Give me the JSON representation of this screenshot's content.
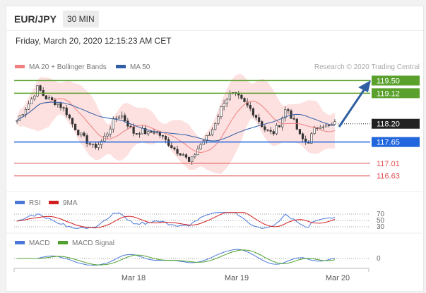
{
  "header": {
    "pair": "EUR/JPY",
    "timeframe": "30 MIN",
    "datetime": "Friday, March 20, 2020 12:15:23 AM CET"
  },
  "legend": {
    "ma20": "MA 20 + Bollinger Bands",
    "ma50": "MA 50",
    "credit": "Research © 2020 Trading Central"
  },
  "colors": {
    "ma20": "#f08080",
    "ma50": "#2e5fa8",
    "bands": "#fde0e0",
    "green": "#5aa02c",
    "blue": "#2266dd",
    "red": "#e05050",
    "arrow": "#2f5fa3",
    "price": "#222222"
  },
  "chart_data": [
    {
      "type": "candlestick",
      "title": "EUR/JPY 30 MIN",
      "ylim": [
        116.2,
        119.7
      ],
      "x_ticks": [
        "Mar 18",
        "Mar 19",
        "Mar 20"
      ],
      "close_path": [
        118.3,
        118.6,
        118.9,
        119.3,
        119.0,
        118.9,
        118.8,
        118.6,
        118.2,
        117.9,
        117.7,
        117.5,
        117.6,
        117.9,
        118.3,
        118.5,
        118.2,
        117.9,
        118.0,
        117.9,
        118.0,
        117.8,
        117.6,
        117.4,
        117.3,
        117.0,
        117.4,
        117.7,
        117.9,
        118.4,
        118.9,
        119.1,
        119.0,
        118.8,
        118.6,
        118.3,
        118.0,
        117.9,
        118.2,
        118.7,
        118.3,
        117.8,
        117.6,
        118.0,
        118.2,
        118.1,
        118.2
      ],
      "levels": [
        {
          "value": "119.50",
          "kind": "resistance",
          "color": "#5aa02c"
        },
        {
          "value": "119.12",
          "kind": "resistance",
          "color": "#5aa02c"
        },
        {
          "value": "118.20",
          "kind": "current",
          "color": "#222222"
        },
        {
          "value": "117.65",
          "kind": "support",
          "color": "#2266dd"
        },
        {
          "value": "117.01",
          "kind": "support",
          "color": "#e05050"
        },
        {
          "value": "116.63",
          "kind": "support",
          "color": "#e05050"
        }
      ],
      "series": [
        {
          "name": "MA 20 + Bollinger Bands"
        },
        {
          "name": "MA 50"
        }
      ]
    },
    {
      "type": "line",
      "title": "RSI",
      "ylim": [
        25,
        75
      ],
      "y_ticks": [
        "70",
        "50",
        "30"
      ],
      "series": [
        {
          "name": "RSI",
          "color": "#4a78d8"
        },
        {
          "name": "9MA",
          "color": "#d21f1f"
        }
      ]
    },
    {
      "type": "line",
      "title": "MACD",
      "y_ticks": [
        "0"
      ],
      "series": [
        {
          "name": "MACD",
          "color": "#4a78d8"
        },
        {
          "name": "MACD Signal",
          "color": "#4fa02c"
        }
      ]
    }
  ]
}
